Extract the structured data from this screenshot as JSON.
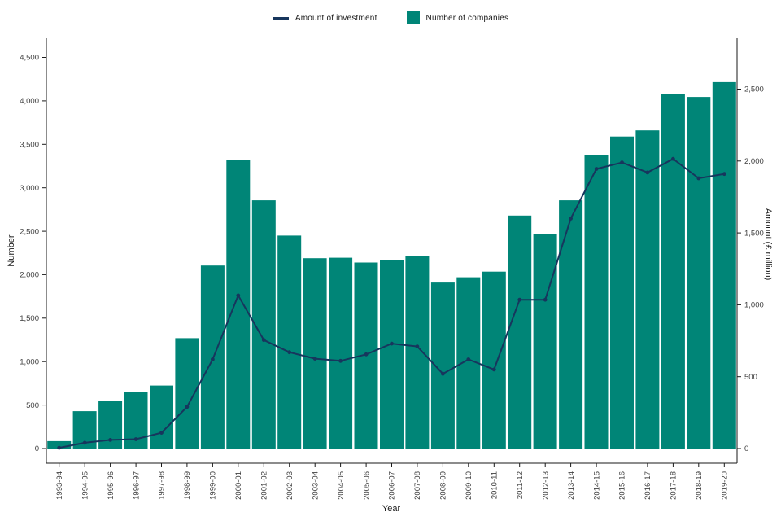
{
  "legend": {
    "items": [
      {
        "label": "Amount of investment",
        "swatch": "line"
      },
      {
        "label": "Number of companies",
        "swatch": "square"
      }
    ]
  },
  "colors": {
    "bar": "#008577",
    "line": "#17365d",
    "axis": "#1a1a1a",
    "tick_label": "#404040"
  },
  "chart_data": {
    "type": "bar",
    "subtype": "bar+line combo, dual axis",
    "title": "",
    "xlabel": "Year",
    "legend_position": "top-center",
    "grid": false,
    "categories": [
      "1993-94",
      "1994-95",
      "1995-96",
      "1996-97",
      "1997-98",
      "1998-99",
      "1999-00",
      "2000-01",
      "2001-02",
      "2002-03",
      "2003-04",
      "2004-05",
      "2005-06",
      "2006-07",
      "2007-08",
      "2008-09",
      "2009-10",
      "2010-11",
      "2011-12",
      "2012-13",
      "2013-14",
      "2014-15",
      "2015-16",
      "2016-17",
      "2017-18",
      "2018-19",
      "2019-20"
    ],
    "series": [
      {
        "name": "Number of companies",
        "type": "bar",
        "axis": "left",
        "color": "#008577",
        "values": [
          85,
          430,
          545,
          655,
          725,
          1270,
          2105,
          3315,
          2855,
          2450,
          2190,
          2195,
          2140,
          2170,
          2210,
          1910,
          1970,
          2035,
          2680,
          2470,
          2855,
          3380,
          3590,
          3660,
          4075,
          4045,
          4215
        ]
      },
      {
        "name": "Amount of investment",
        "type": "line",
        "axis": "right",
        "color": "#17365d",
        "values": [
          5,
          40,
          60,
          65,
          110,
          290,
          620,
          1065,
          755,
          670,
          625,
          610,
          655,
          730,
          710,
          520,
          620,
          550,
          1035,
          1035,
          1600,
          1945,
          1990,
          1920,
          2015,
          1880,
          1910
        ]
      }
    ],
    "left_axis": {
      "label": "Number",
      "range": [
        0,
        4500
      ],
      "ticks": [
        0,
        500,
        1000,
        1500,
        2000,
        2500,
        3000,
        3500,
        4000,
        4500
      ]
    },
    "right_axis": {
      "label": "Amount (£ million)",
      "range": [
        0,
        2500
      ],
      "ticks": [
        0,
        500,
        1000,
        1500,
        2000,
        2500
      ]
    }
  }
}
